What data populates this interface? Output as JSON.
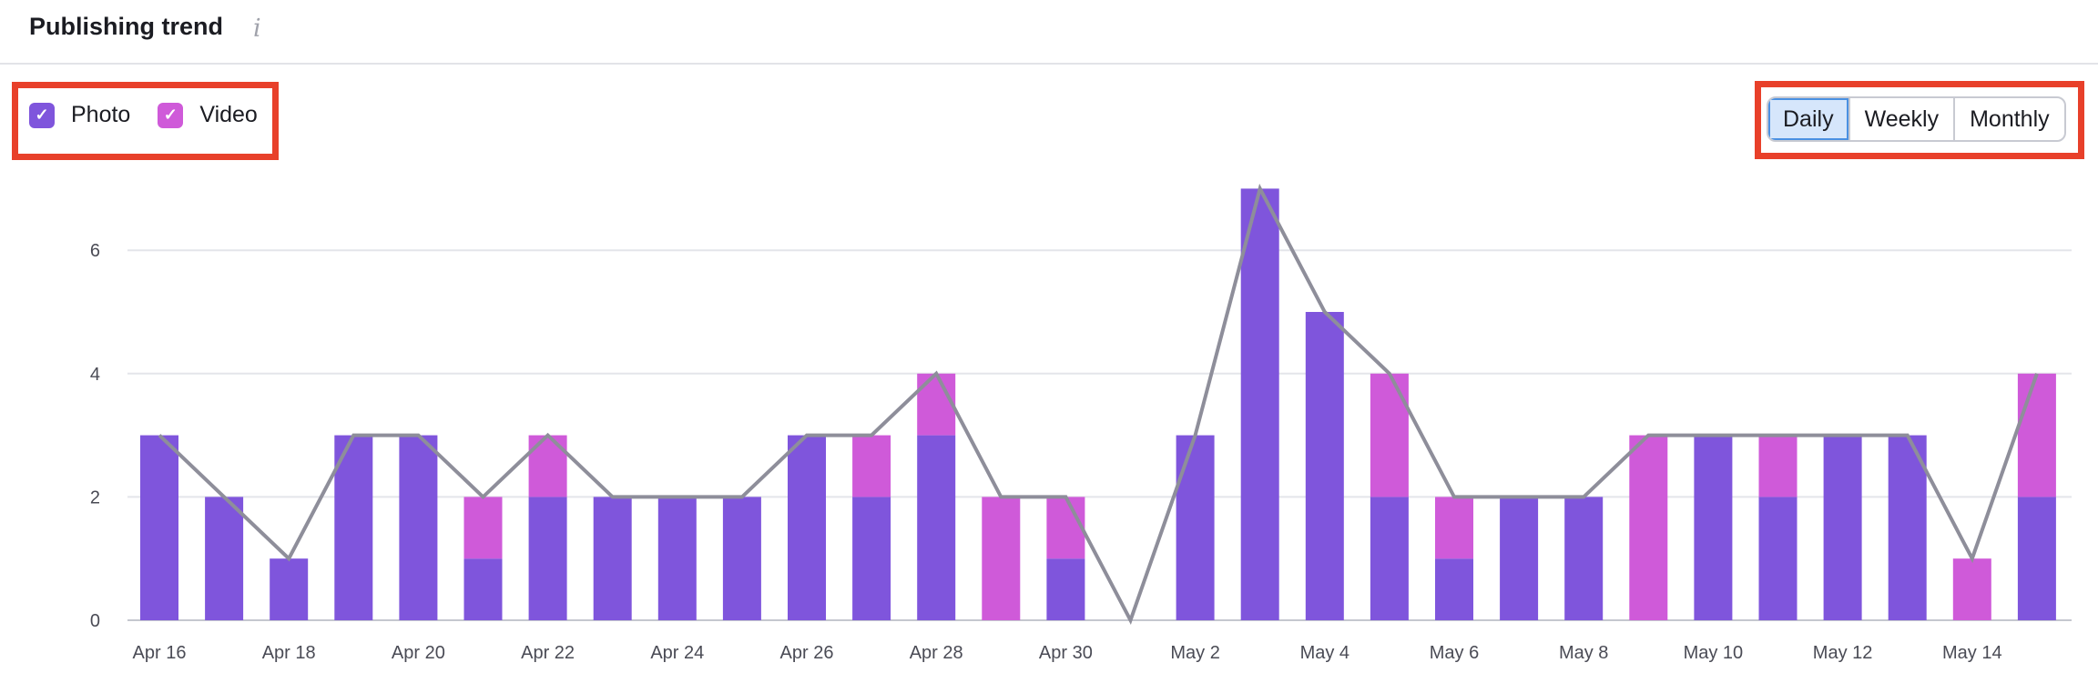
{
  "header": {
    "title": "Publishing trend",
    "info_icon": "info-icon"
  },
  "legend": [
    {
      "label": "Photo",
      "color": "#7f55dc",
      "checked": true
    },
    {
      "label": "Video",
      "color": "#cf5ad9",
      "checked": true
    }
  ],
  "period_toggle": {
    "options": [
      "Daily",
      "Weekly",
      "Monthly"
    ],
    "selected": "Daily"
  },
  "chart_data": {
    "type": "bar",
    "stacked": true,
    "categories": [
      "Apr 16",
      "Apr 17",
      "Apr 18",
      "Apr 19",
      "Apr 20",
      "Apr 21",
      "Apr 22",
      "Apr 23",
      "Apr 24",
      "Apr 25",
      "Apr 26",
      "Apr 27",
      "Apr 28",
      "Apr 29",
      "Apr 30",
      "May 1",
      "May 2",
      "May 3",
      "May 4",
      "May 5",
      "May 6",
      "May 7",
      "May 8",
      "May 9",
      "May 10",
      "May 11",
      "May 12",
      "May 13",
      "May 14",
      "May 15"
    ],
    "x_tick_labels": [
      "Apr 16",
      "Apr 18",
      "Apr 20",
      "Apr 22",
      "Apr 24",
      "Apr 26",
      "Apr 28",
      "Apr 30",
      "May 2",
      "May 4",
      "May 6",
      "May 8",
      "May 10",
      "May 12",
      "May 14"
    ],
    "series": [
      {
        "name": "Photo",
        "color": "#7f55dc",
        "values": [
          3,
          2,
          1,
          3,
          3,
          1,
          2,
          2,
          2,
          2,
          3,
          2,
          3,
          0,
          1,
          0,
          3,
          7,
          5,
          2,
          1,
          2,
          2,
          0,
          3,
          2,
          3,
          3,
          0,
          2
        ]
      },
      {
        "name": "Video",
        "color": "#cf5ad9",
        "values": [
          0,
          0,
          0,
          0,
          0,
          1,
          1,
          0,
          0,
          0,
          0,
          1,
          1,
          2,
          1,
          0,
          0,
          0,
          0,
          2,
          1,
          0,
          0,
          3,
          0,
          1,
          0,
          0,
          1,
          2
        ]
      }
    ],
    "total_line": {
      "color": "#8e8e9a",
      "values": [
        3,
        2,
        1,
        3,
        3,
        2,
        3,
        2,
        2,
        2,
        3,
        3,
        4,
        2,
        2,
        0,
        3,
        7,
        5,
        4,
        2,
        2,
        2,
        3,
        3,
        3,
        3,
        3,
        1,
        4
      ]
    },
    "y_ticks": [
      0,
      2,
      4,
      6
    ],
    "ylim": [
      0,
      7
    ],
    "grid": true
  }
}
